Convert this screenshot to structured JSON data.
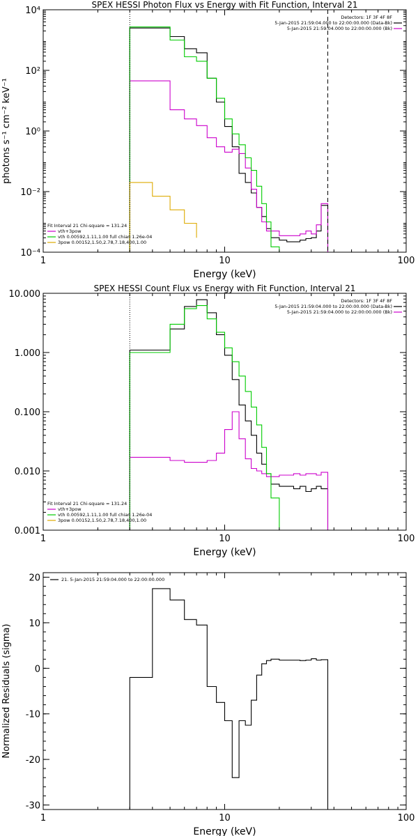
{
  "chart_data": [
    {
      "type": "line",
      "title": "SPEX HESSI Photon Flux vs Energy with Fit Function, Interval 21",
      "xlabel": "Energy (keV)",
      "ylabel": "photons s⁻¹ cm⁻² keV⁻¹",
      "xscale": "log",
      "yscale": "log",
      "xlim": [
        1,
        100
      ],
      "ylim": [
        0.0001,
        10000
      ],
      "xticks": [
        {
          "v": 1,
          "label": "1"
        },
        {
          "v": 10,
          "label": "10"
        },
        {
          "v": 100,
          "label": "100"
        }
      ],
      "yticks": [
        {
          "v": 0.0001,
          "label": "10⁻⁴"
        },
        {
          "v": 0.01,
          "label": "10⁻²"
        },
        {
          "v": 1,
          "label": "10⁰"
        },
        {
          "v": 100,
          "label": "10²"
        },
        {
          "v": 10000,
          "label": "10⁴"
        }
      ],
      "vlines": [
        {
          "x": 3.0,
          "style": "dotted"
        },
        {
          "x": 37.0,
          "style": "dashed"
        }
      ],
      "legend_right": {
        "header": "Detectors: 1F 3F 4F 8F",
        "entries": [
          {
            "text": "5-Jan-2015 21:59:04.000 to 22:00:00.000 (Data-Bk)",
            "color": "#000000"
          },
          {
            "text": "5-Jan-2015 21:59:04.000 to 22:00:00.000 (Bk)",
            "color": "#cc00cc"
          }
        ]
      },
      "legend_left": {
        "header": "Fit Interval 21    Chi-square = 131.24",
        "entries": [
          {
            "text": "vth+3pow",
            "color": "#cc00cc"
          },
          {
            "text": "vth 0.00592,1.11,1.00  full chian 1.26e-04",
            "color": "#00cc00"
          },
          {
            "text": "3pow 0.00152,1.50,2.78,7.18,400,1.00",
            "color": "#ddaa00"
          }
        ]
      },
      "series": [
        {
          "color": "#000000",
          "edges": [
            3.0,
            4.0,
            5.0,
            6.0,
            7.0,
            8.0,
            9.0,
            10.0,
            11.0,
            12.0,
            13.0,
            14.0,
            15.0,
            16.0,
            17.0,
            18.0,
            20.0,
            22.0,
            24.0,
            26.0,
            28.0,
            30.0,
            32.0,
            34.0,
            37.0
          ],
          "values": [
            2500,
            2500,
            1300,
            520,
            380,
            55,
            9,
            1.4,
            0.3,
            0.04,
            0.02,
            0.009,
            0.003,
            0.0015,
            0.0006,
            0.0003,
            0.00025,
            0.00022,
            0.00022,
            0.00025,
            0.00028,
            0.0003,
            0.0005,
            0.0035
          ]
        },
        {
          "color": "#cc00cc",
          "edges": [
            3.0,
            4.0,
            5.0,
            6.0,
            7.0,
            8.0,
            9.0,
            10.0,
            11.0,
            12.0,
            13.0,
            14.0,
            15.0,
            16.0,
            17.0,
            18.0,
            20.0,
            22.0,
            24.0,
            26.0,
            28.0,
            30.0,
            32.0,
            34.0,
            37.0
          ],
          "values": [
            45,
            45,
            5,
            2.5,
            1.5,
            0.6,
            0.3,
            0.2,
            0.25,
            0.18,
            0.06,
            0.012,
            0.003,
            0.001,
            0.0005,
            0.0005,
            0.00035,
            0.00035,
            0.00035,
            0.0004,
            0.0005,
            0.0004,
            0.0008,
            0.004
          ]
        },
        {
          "color": "#00cc00",
          "edges": [
            3.0,
            4.0,
            5.0,
            6.0,
            7.0,
            8.0,
            9.0,
            10.0,
            11.0,
            12.0,
            13.0,
            14.0,
            15.0,
            16.0,
            17.0,
            18.0,
            20.0
          ],
          "values": [
            2700,
            2700,
            1000,
            280,
            200,
            55,
            12,
            2.5,
            0.8,
            0.35,
            0.13,
            0.05,
            0.015,
            0.004,
            0.001,
            0.00015
          ]
        },
        {
          "color": "#ddaa00",
          "edges": [
            3.0,
            4.0,
            5.0,
            6.0,
            7.0
          ],
          "values": [
            0.02,
            0.007,
            0.0025,
            0.0009,
            0.0003
          ]
        }
      ]
    },
    {
      "type": "line",
      "title": "SPEX HESSI Count Flux vs Energy with Fit Function, Interval 21",
      "xlabel": "Energy (keV)",
      "ylabel": "",
      "xscale": "log",
      "yscale": "log",
      "xlim": [
        1,
        100
      ],
      "ylim": [
        0.001,
        10
      ],
      "xticks": [
        {
          "v": 1,
          "label": "1"
        },
        {
          "v": 10,
          "label": "10"
        },
        {
          "v": 100,
          "label": "100"
        }
      ],
      "yticks": [
        {
          "v": 0.001,
          "label": "0.001"
        },
        {
          "v": 0.01,
          "label": "0.010"
        },
        {
          "v": 0.1,
          "label": "0.100"
        },
        {
          "v": 1,
          "label": "1.000"
        },
        {
          "v": 10,
          "label": "10.000"
        }
      ],
      "vlines": [
        {
          "x": 3.0,
          "style": "dotted"
        }
      ],
      "legend_right": {
        "header": "Detectors: 1F 3F 4F 8F",
        "entries": [
          {
            "text": "5-Jan-2015 21:59:04.000 to 22:00:00.000 (Data-Bk)",
            "color": "#000000"
          },
          {
            "text": "5-Jan-2015 21:59:04.000 to 22:00:00.000 (Bk)",
            "color": "#cc00cc"
          }
        ]
      },
      "legend_left": {
        "header": "Fit Interval 21    Chi-square = 131.24",
        "entries": [
          {
            "text": "vth+3pow",
            "color": "#cc00cc"
          },
          {
            "text": "vth 0.00592,1.11,1.00  full chian 1.26e-04",
            "color": "#00cc00"
          },
          {
            "text": "3pow 0.00152,1.50,2.78,7.18,400,1.00",
            "color": "#ddaa00"
          }
        ]
      },
      "series": [
        {
          "color": "#000000",
          "edges": [
            3.0,
            4.0,
            5.0,
            6.0,
            7.0,
            8.0,
            9.0,
            10.0,
            11.0,
            12.0,
            13.0,
            14.0,
            15.0,
            16.0,
            17.0,
            18.0,
            20.0,
            22.0,
            24.0,
            26.0,
            28.0,
            30.0,
            32.0,
            34.0,
            37.0
          ],
          "values": [
            1.1,
            1.1,
            2.5,
            6.0,
            7.8,
            4.7,
            2.0,
            0.9,
            0.35,
            0.13,
            0.07,
            0.04,
            0.02,
            0.013,
            0.009,
            0.006,
            0.0055,
            0.0055,
            0.005,
            0.0055,
            0.0045,
            0.005,
            0.0055,
            0.005
          ]
        },
        {
          "color": "#cc00cc",
          "edges": [
            3.0,
            4.0,
            5.0,
            6.0,
            7.0,
            8.0,
            9.0,
            10.0,
            11.0,
            12.0,
            13.0,
            14.0,
            15.0,
            16.0,
            17.0,
            18.0,
            20.0,
            22.0,
            24.0,
            26.0,
            28.0,
            30.0,
            32.0,
            34.0,
            37.0
          ],
          "values": [
            0.017,
            0.017,
            0.015,
            0.014,
            0.014,
            0.015,
            0.02,
            0.05,
            0.1,
            0.035,
            0.016,
            0.011,
            0.01,
            0.009,
            0.008,
            0.008,
            0.0085,
            0.0085,
            0.009,
            0.0085,
            0.009,
            0.009,
            0.0085,
            0.0095
          ]
        },
        {
          "color": "#00cc00",
          "edges": [
            3.0,
            4.0,
            5.0,
            6.0,
            7.0,
            8.0,
            9.0,
            10.0,
            11.0,
            12.0,
            13.0,
            14.0,
            15.0,
            16.0,
            17.0,
            18.0,
            20.0
          ],
          "values": [
            1.0,
            1.0,
            3.0,
            5.5,
            6.2,
            3.7,
            2.2,
            1.2,
            0.7,
            0.4,
            0.22,
            0.12,
            0.06,
            0.025,
            0.009,
            0.0035
          ]
        }
      ]
    },
    {
      "type": "line",
      "title": "",
      "xlabel": "Energy (keV)",
      "ylabel": "Normalized Residuals (sigma)",
      "xscale": "log",
      "yscale": "linear",
      "xlim": [
        1,
        100
      ],
      "ylim": [
        -31,
        21
      ],
      "xticks": [
        {
          "v": 1,
          "label": "1"
        },
        {
          "v": 10,
          "label": "10"
        },
        {
          "v": 100,
          "label": "100"
        }
      ],
      "yticks": [
        {
          "v": -30,
          "label": "-30"
        },
        {
          "v": -20,
          "label": "-20"
        },
        {
          "v": -10,
          "label": "-10"
        },
        {
          "v": 0,
          "label": "0"
        },
        {
          "v": 10,
          "label": "10"
        },
        {
          "v": 20,
          "label": "20"
        }
      ],
      "vlines": [],
      "legend_right": null,
      "legend_left": null,
      "legend_top": {
        "text": "21.  5-Jan-2015 21:59:04.000 to 22:00:00.000",
        "color": "#000000"
      },
      "series": [
        {
          "color": "#000000",
          "edges": [
            3.0,
            4.0,
            5.0,
            6.0,
            7.0,
            8.0,
            9.0,
            10.0,
            11.0,
            12.0,
            13.0,
            14.0,
            15.0,
            16.0,
            17.0,
            18.0,
            20.0,
            22.0,
            24.0,
            26.0,
            28.0,
            30.0,
            32.0,
            34.0,
            37.0
          ],
          "values": [
            -2,
            17.5,
            15,
            10.7,
            9.5,
            -4,
            -7.5,
            -11.5,
            -24,
            -11.5,
            -12.5,
            -7,
            -1.5,
            1,
            1.7,
            2,
            1.8,
            1.8,
            1.8,
            1.7,
            1.8,
            2.1,
            1.8,
            1.9
          ]
        }
      ]
    }
  ]
}
